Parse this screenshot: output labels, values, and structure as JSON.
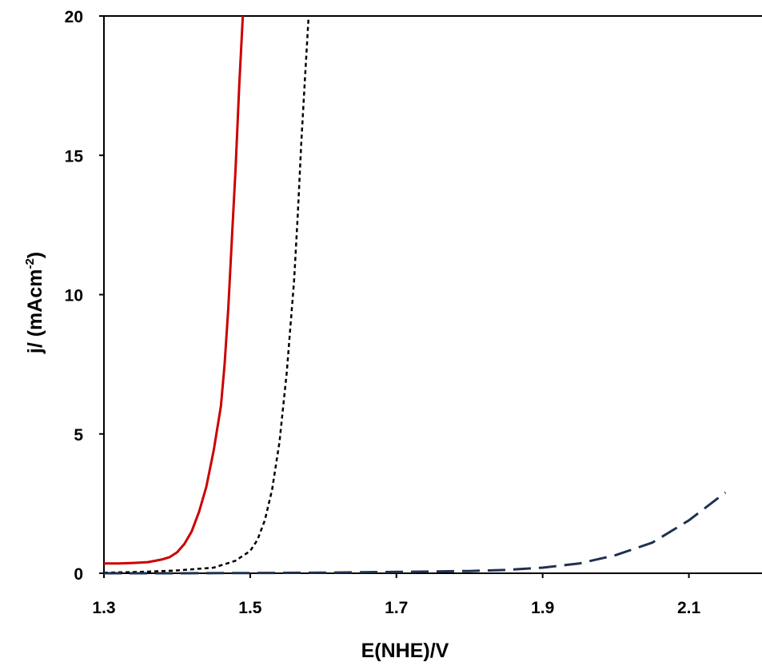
{
  "chart_data": {
    "type": "line",
    "title": "",
    "xlabel": "E(NHE)/V",
    "ylabel_main": "j/ (mAcm",
    "ylabel_sup": "-2",
    "ylabel_close": ")",
    "xlim": [
      1.3,
      2.2
    ],
    "ylim": [
      0,
      20
    ],
    "x_ticks": [
      1.3,
      1.5,
      1.7,
      1.9,
      2.1
    ],
    "x_tick_labels": [
      "1.3",
      "1.5",
      "1.7",
      "1.9",
      "2.1"
    ],
    "y_ticks": [
      0,
      5,
      10,
      15,
      20
    ],
    "y_tick_labels": [
      "0",
      "5",
      "10",
      "15",
      "20"
    ],
    "grid": false,
    "legend": "none",
    "series": [
      {
        "style": "solid",
        "color": "#cc0000",
        "x": [
          1.3,
          1.32,
          1.34,
          1.36,
          1.38,
          1.39,
          1.4,
          1.41,
          1.42,
          1.43,
          1.44,
          1.45,
          1.46,
          1.465,
          1.47,
          1.475,
          1.48,
          1.485,
          1.49
        ],
        "y": [
          0.35,
          0.35,
          0.37,
          0.4,
          0.5,
          0.58,
          0.75,
          1.05,
          1.5,
          2.2,
          3.1,
          4.4,
          6.0,
          7.5,
          9.5,
          12.0,
          14.5,
          17.5,
          20.0
        ]
      },
      {
        "style": "dotted",
        "color": "#000000",
        "x": [
          1.3,
          1.35,
          1.4,
          1.45,
          1.48,
          1.5,
          1.51,
          1.52,
          1.53,
          1.54,
          1.55,
          1.56,
          1.565,
          1.57,
          1.575,
          1.58
        ],
        "y": [
          0.02,
          0.05,
          0.1,
          0.2,
          0.45,
          0.8,
          1.2,
          1.9,
          3.0,
          4.7,
          7.2,
          10.5,
          12.8,
          15.5,
          17.8,
          20.0
        ]
      },
      {
        "style": "dashed",
        "color": "#1f3150",
        "x": [
          1.3,
          1.4,
          1.5,
          1.6,
          1.7,
          1.8,
          1.85,
          1.9,
          1.95,
          2.0,
          2.05,
          2.1,
          2.15
        ],
        "y": [
          0.0,
          0.0,
          0.01,
          0.02,
          0.05,
          0.08,
          0.12,
          0.2,
          0.35,
          0.65,
          1.1,
          1.9,
          2.9
        ]
      }
    ]
  }
}
